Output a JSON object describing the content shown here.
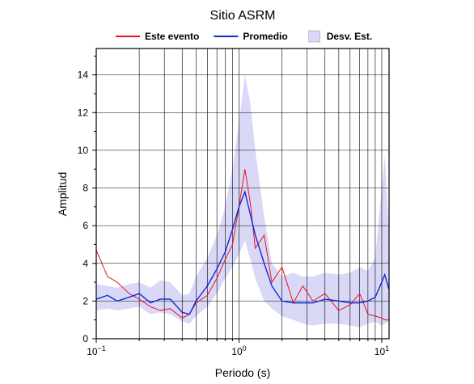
{
  "chart_data": {
    "type": "line",
    "title": "Sitio ASRM",
    "xlabel": "Periodo (s)",
    "ylabel": "Amplitud",
    "xscale": "log",
    "xlim": [
      0.1,
      11.25
    ],
    "ylim": [
      0,
      15.4
    ],
    "grid": true,
    "xticks": [
      {
        "value": 0.1,
        "label": "10",
        "exponent": "−1"
      },
      {
        "value": 1,
        "label": "10",
        "exponent": "0"
      },
      {
        "value": 10,
        "label": "10",
        "exponent": "1"
      }
    ],
    "xminor": [
      0.2,
      0.3,
      0.4,
      0.5,
      0.6,
      0.7,
      0.8,
      0.9,
      2,
      3,
      4,
      5,
      6,
      7,
      8,
      9
    ],
    "yticks": [
      0,
      2,
      4,
      6,
      8,
      10,
      12,
      14
    ],
    "yminor": [
      1,
      3,
      5,
      7,
      9,
      11,
      13,
      15
    ],
    "x": [
      0.1,
      0.12,
      0.14,
      0.17,
      0.2,
      0.24,
      0.28,
      0.33,
      0.4,
      0.45,
      0.5,
      0.6,
      0.7,
      0.8,
      0.9,
      1.0,
      1.1,
      1.2,
      1.3,
      1.5,
      1.7,
      2.0,
      2.4,
      2.8,
      3.3,
      4,
      5,
      6,
      7,
      8,
      9,
      10,
      10.5,
      11.25
    ],
    "bands": [
      {
        "name": "Desv. Est.",
        "color": "#d9d9f7",
        "upper": [
          2.9,
          2.8,
          2.7,
          2.9,
          3.0,
          2.7,
          3.1,
          3.0,
          2.3,
          2.4,
          3.3,
          4.3,
          5.5,
          7.0,
          9.0,
          11.5,
          14.0,
          12.5,
          10.0,
          6.5,
          4.0,
          3.3,
          3.5,
          3.3,
          3.3,
          3.5,
          3.4,
          3.5,
          3.8,
          3.6,
          4.3,
          8.0,
          9.7,
          5.5
        ],
        "lower": [
          1.5,
          1.6,
          1.5,
          1.6,
          1.7,
          1.3,
          1.4,
          1.3,
          0.9,
          0.8,
          1.2,
          1.7,
          2.4,
          3.2,
          3.8,
          4.5,
          5.2,
          4.2,
          3.2,
          2.0,
          1.6,
          1.2,
          1.0,
          0.8,
          0.7,
          0.8,
          0.8,
          0.7,
          0.6,
          0.8,
          0.9,
          0.7,
          0.8,
          0.9
        ]
      }
    ],
    "series": [
      {
        "name": "Este evento",
        "color": "#e8141c",
        "values": [
          4.7,
          3.3,
          3.0,
          2.4,
          2.1,
          1.7,
          1.5,
          1.6,
          1.1,
          1.3,
          1.9,
          2.3,
          3.2,
          4.2,
          5.0,
          7.0,
          9.0,
          7.2,
          4.8,
          5.5,
          3.0,
          3.8,
          1.9,
          2.8,
          2.0,
          2.4,
          1.5,
          1.8,
          2.4,
          1.3,
          1.2,
          1.1,
          1.0,
          1.0
        ]
      },
      {
        "name": "Promedio",
        "color": "#1428d8",
        "values": [
          2.1,
          2.3,
          2.0,
          2.2,
          2.4,
          1.9,
          2.1,
          2.1,
          1.4,
          1.3,
          2.0,
          2.8,
          3.7,
          4.6,
          5.8,
          7.0,
          7.8,
          6.6,
          5.5,
          4.0,
          2.8,
          2.0,
          1.9,
          1.9,
          1.9,
          2.1,
          2.0,
          1.9,
          1.9,
          2.0,
          2.2,
          3.0,
          3.4,
          2.6
        ]
      }
    ]
  }
}
